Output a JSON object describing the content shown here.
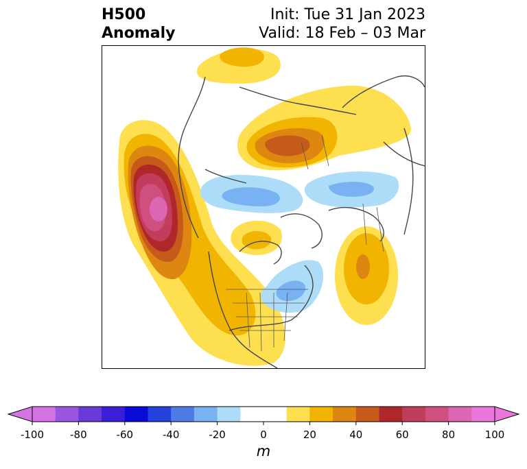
{
  "header": {
    "title_line1": "H500",
    "title_line2": "Anomaly",
    "init_text": "Init: Tue 31 Jan 2023",
    "valid_text": "Valid: 18 Feb – 03 Mar"
  },
  "map": {
    "projection": "polar-stereographic-north-america",
    "features": [
      "coastlines",
      "country-borders",
      "state-borders"
    ],
    "anomaly_centers": [
      {
        "region": "northeast-pacific",
        "sign": "positive",
        "peak_m": 100
      },
      {
        "region": "siberia",
        "sign": "positive",
        "peak_m": 50
      },
      {
        "region": "north-atlantic",
        "sign": "positive",
        "peak_m": 40
      },
      {
        "region": "hudson-bay",
        "sign": "positive",
        "peak_m": 20
      },
      {
        "region": "arctic-ocean",
        "sign": "negative",
        "peak_m": -30
      },
      {
        "region": "eastern-canada",
        "sign": "negative",
        "peak_m": -20
      },
      {
        "region": "scandinavia",
        "sign": "negative",
        "peak_m": -20
      }
    ]
  },
  "colorbar": {
    "units": "m",
    "min": -100,
    "max": 100,
    "step": 10,
    "extend": "both",
    "tick_labels": [
      "-100",
      "-80",
      "-60",
      "-40",
      "-20",
      "0",
      "20",
      "40",
      "60",
      "80",
      "100"
    ],
    "colors": [
      "#d674e6",
      "#9b55e0",
      "#6a3ad8",
      "#3b1fd6",
      "#0a0bd6",
      "#2642dc",
      "#4f7be6",
      "#78b2f2",
      "#addcf8",
      "#ffffff",
      "#ffffff",
      "#fddf4f",
      "#f1b400",
      "#de8612",
      "#c55a1a",
      "#b0272a",
      "#c23d5c",
      "#cf4f7f",
      "#dd66b3",
      "#e977dc"
    ]
  }
}
